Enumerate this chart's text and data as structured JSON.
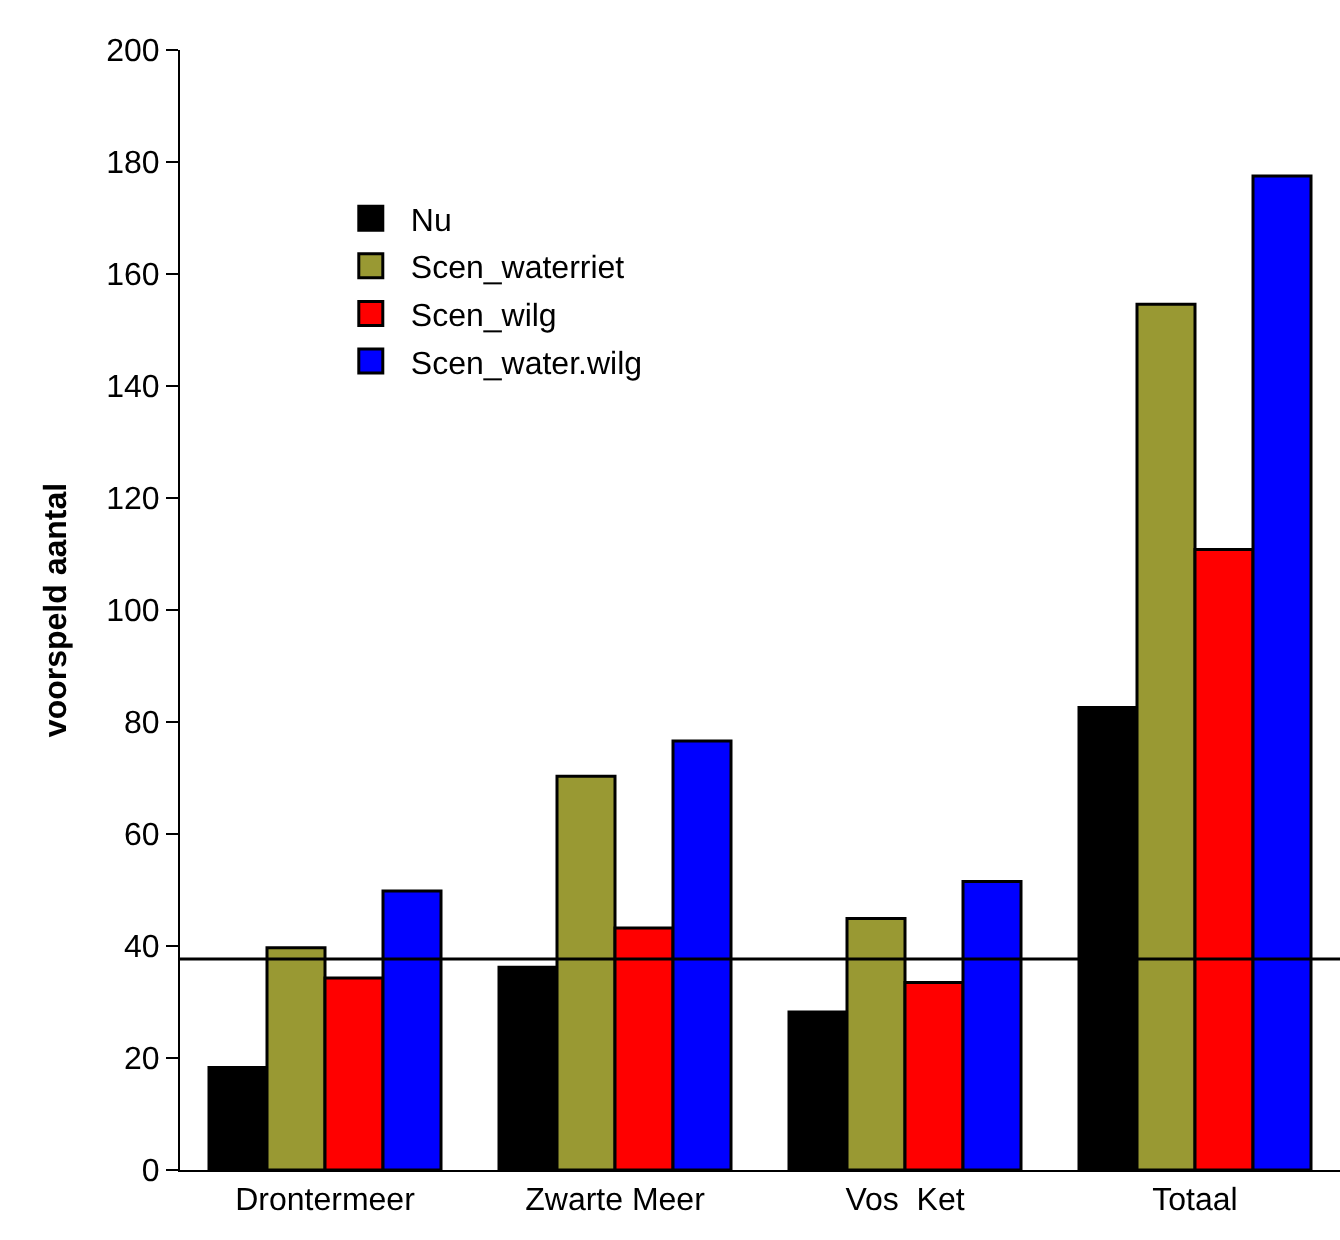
{
  "chart_data": {
    "type": "bar",
    "ylabel": "voorspeld aantal",
    "categories": [
      "Drontermeer",
      "Zwarte Meer",
      "Vos  Ket",
      "Totaal"
    ],
    "series": [
      {
        "name": "Nu",
        "color": "#000000",
        "values": [
          18.3,
          36.2,
          28.2,
          82.6
        ]
      },
      {
        "name": "Scen_waterriet",
        "color": "#999933",
        "values": [
          39.7,
          70.3,
          44.9,
          154.6
        ]
      },
      {
        "name": "Scen_wilg",
        "color": "#ff0000",
        "values": [
          34.3,
          43.2,
          33.5,
          110.8
        ]
      },
      {
        "name": "Scen_water.wilg",
        "color": "#0000ff",
        "values": [
          49.8,
          76.6,
          51.5,
          177.5
        ]
      }
    ],
    "ylim": [
      0,
      200
    ],
    "yticks": [
      0,
      20,
      40,
      60,
      80,
      100,
      120,
      140,
      160,
      180,
      200
    ],
    "ref_lines": [
      {
        "axis": "y",
        "value": 37.7,
        "color": "#000000"
      }
    ],
    "legend": "top left"
  }
}
